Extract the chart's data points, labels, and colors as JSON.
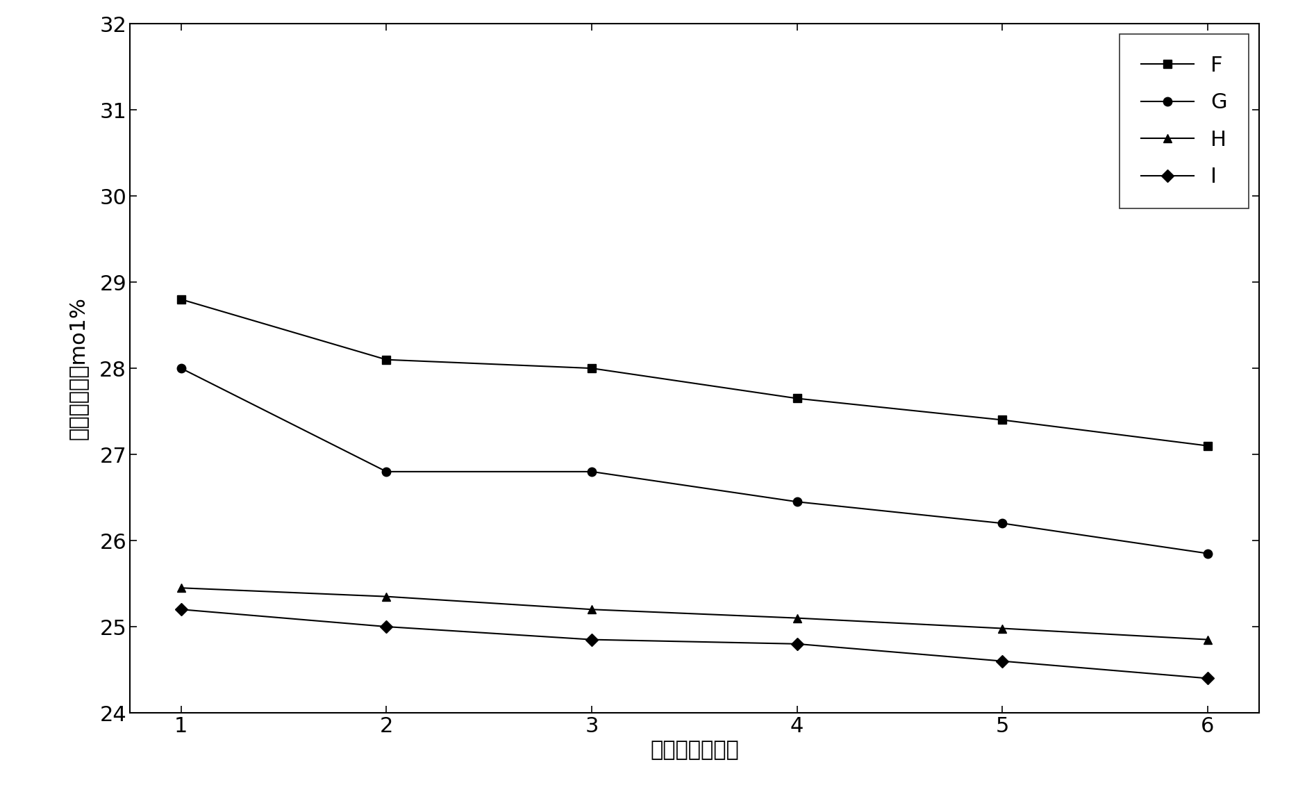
{
  "x": [
    1,
    2,
    3,
    4,
    5,
    6
  ],
  "series_order": [
    "F",
    "G",
    "H",
    "I"
  ],
  "series": {
    "F": [
      28.8,
      28.1,
      28.0,
      27.65,
      27.4,
      27.1
    ],
    "G": [
      28.0,
      26.8,
      26.8,
      26.45,
      26.2,
      25.85
    ],
    "H": [
      25.45,
      25.35,
      25.2,
      25.1,
      24.98,
      24.85
    ],
    "I": [
      25.2,
      25.0,
      24.85,
      24.8,
      24.6,
      24.4
    ]
  },
  "markers": {
    "F": "s",
    "G": "o",
    "H": "^",
    "I": "D"
  },
  "colors": {
    "F": "#000000",
    "G": "#000000",
    "H": "#000000",
    "I": "#000000"
  },
  "ylabel": "丙烷转化率，mo1%",
  "xlabel": "反应时间，小时",
  "ylim": [
    24.0,
    32.0
  ],
  "yticks": [
    24,
    25,
    26,
    27,
    28,
    29,
    30,
    31,
    32
  ],
  "xticks": [
    1,
    2,
    3,
    4,
    5,
    6
  ],
  "background_color": "#ffffff",
  "linewidth": 1.5,
  "markersize": 9,
  "legend_loc": "upper right",
  "font_size_tick": 22,
  "font_size_label": 22,
  "font_size_legend": 22,
  "fig_width": 18.69,
  "fig_height": 11.4,
  "dpi": 100
}
